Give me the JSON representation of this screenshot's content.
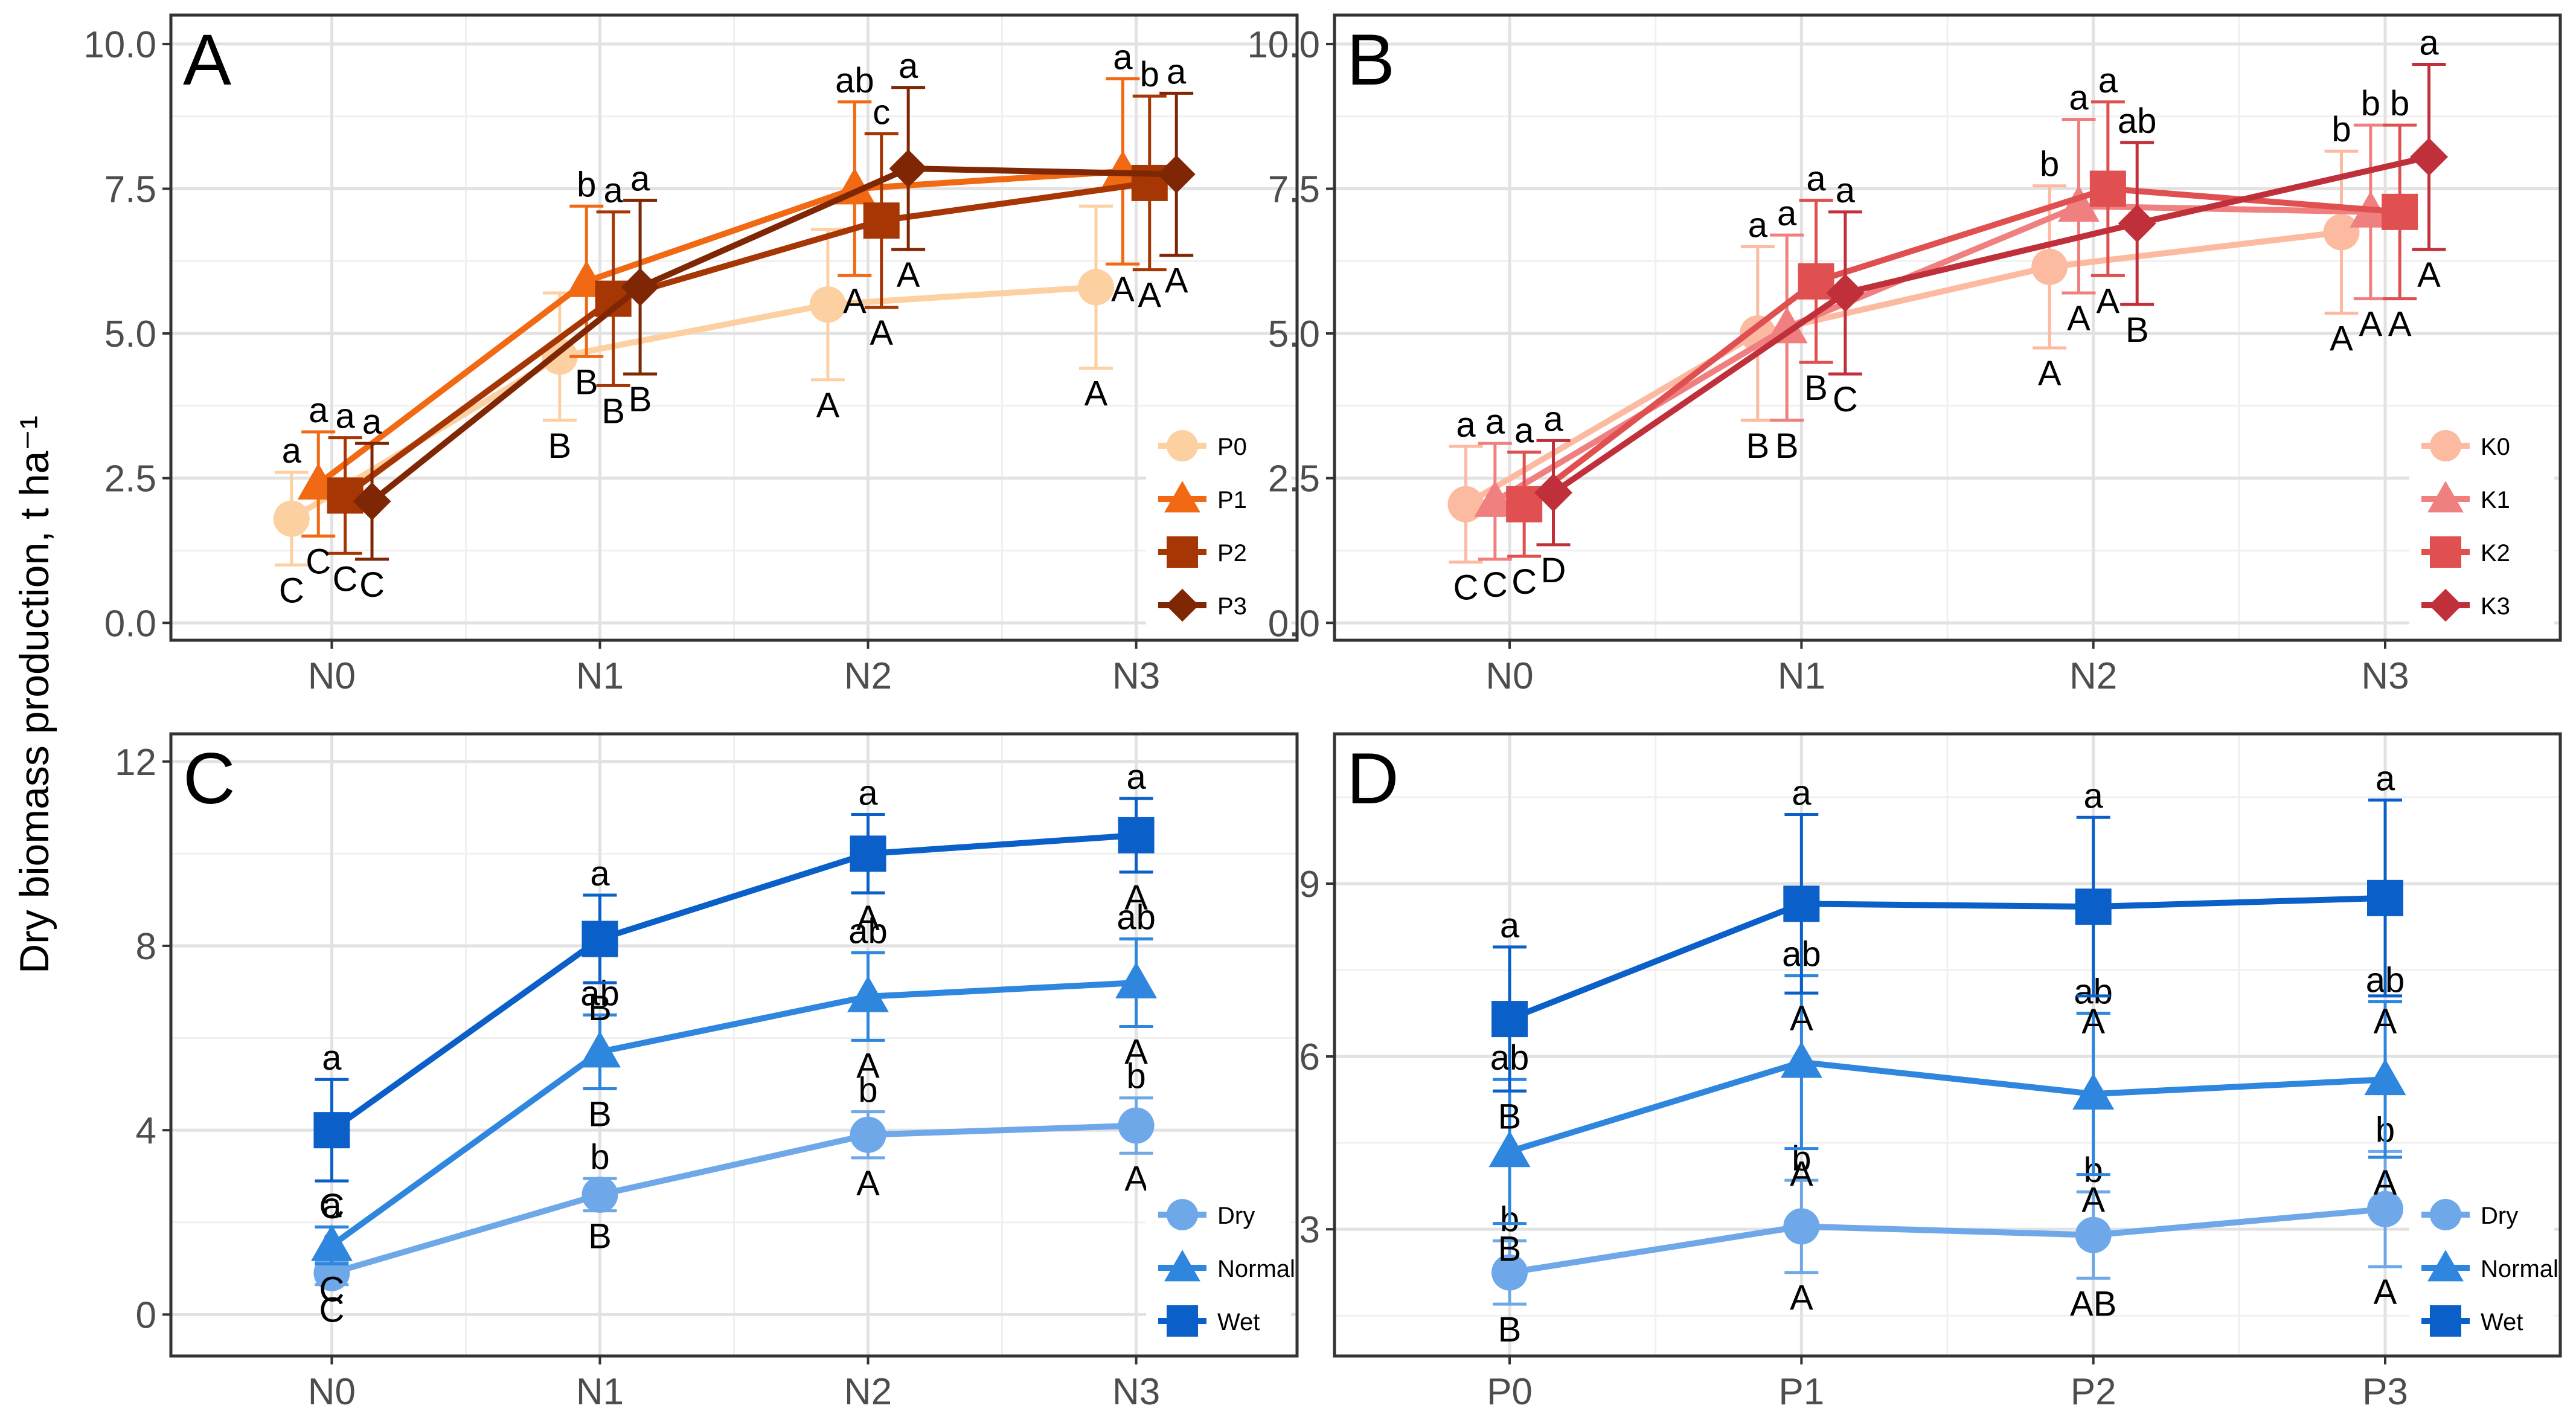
{
  "y_axis_title": "Dry biomass production, t ha⁻¹",
  "chart_data": [
    {
      "panel_label": "A",
      "type": "line",
      "categories": [
        "N0",
        "N1",
        "N2",
        "N3"
      ],
      "yticks": [
        "0.0",
        "2.5",
        "5.0",
        "7.5",
        "10.0"
      ],
      "ytick_values": [
        0,
        2.5,
        5,
        7.5,
        10
      ],
      "ylim": [
        -0.3,
        10.5
      ],
      "legend_position": "bottom-right",
      "series": [
        {
          "name": "P0",
          "shape": "circle",
          "color": "#FDD0A2",
          "values": [
            1.8,
            4.6,
            5.5,
            5.8
          ],
          "err": [
            0.8,
            1.1,
            1.3,
            1.4
          ],
          "upper_labels": [
            "a",
            "",
            "",
            ""
          ],
          "lower_labels": [
            "C",
            "B",
            "A",
            "A"
          ]
        },
        {
          "name": "P1",
          "shape": "triangle",
          "color": "#F16913",
          "values": [
            2.4,
            5.9,
            7.5,
            7.8
          ],
          "err": [
            0.9,
            1.3,
            1.5,
            1.6
          ],
          "upper_labels": [
            "a",
            "b",
            "ab",
            "a"
          ],
          "lower_labels": [
            "C",
            "B",
            "A",
            "A"
          ]
        },
        {
          "name": "P2",
          "shape": "square",
          "color": "#A63603",
          "values": [
            2.2,
            5.6,
            6.95,
            7.6
          ],
          "err": [
            1.0,
            1.5,
            1.5,
            1.5
          ],
          "upper_labels": [
            "a",
            "a",
            "c",
            "b"
          ],
          "lower_labels": [
            "C",
            "B",
            "A",
            "A"
          ]
        },
        {
          "name": "P3",
          "shape": "diamond",
          "color": "#7F2704",
          "values": [
            2.1,
            5.8,
            7.85,
            7.75
          ],
          "err": [
            1.0,
            1.5,
            1.4,
            1.4
          ],
          "upper_labels": [
            "a",
            "a",
            "a",
            "a"
          ],
          "lower_labels": [
            "C",
            "B",
            "A",
            "A"
          ]
        }
      ]
    },
    {
      "panel_label": "B",
      "type": "line",
      "categories": [
        "N0",
        "N1",
        "N2",
        "N3"
      ],
      "yticks": [
        "0.0",
        "2.5",
        "5.0",
        "7.5",
        "10.0"
      ],
      "ytick_values": [
        0,
        2.5,
        5,
        7.5,
        10
      ],
      "ylim": [
        -0.3,
        10.5
      ],
      "legend_position": "bottom-right",
      "series": [
        {
          "name": "K0",
          "shape": "circle",
          "color": "#FCBBA1",
          "values": [
            2.05,
            5.0,
            6.15,
            6.75
          ],
          "err": [
            1.0,
            1.5,
            1.4,
            1.4
          ],
          "upper_labels": [
            "a",
            "a",
            "b",
            "b"
          ],
          "lower_labels": [
            "C",
            "B",
            "A",
            "A"
          ]
        },
        {
          "name": "K1",
          "shape": "triangle",
          "color": "#F08080",
          "values": [
            2.1,
            5.1,
            7.2,
            7.1
          ],
          "err": [
            1.0,
            1.6,
            1.5,
            1.5
          ],
          "upper_labels": [
            "a",
            "a",
            "a",
            "b"
          ],
          "lower_labels": [
            "C",
            "B",
            "A",
            "A"
          ]
        },
        {
          "name": "K2",
          "shape": "square",
          "color": "#E05050",
          "values": [
            2.05,
            5.9,
            7.5,
            7.1
          ],
          "err": [
            0.9,
            1.4,
            1.5,
            1.5
          ],
          "upper_labels": [
            "a",
            "a",
            "a",
            "b"
          ],
          "lower_labels": [
            "C",
            "B",
            "A",
            "A"
          ]
        },
        {
          "name": "K3",
          "shape": "diamond",
          "color": "#C0303A",
          "values": [
            2.25,
            5.7,
            6.9,
            8.05
          ],
          "err": [
            0.9,
            1.4,
            1.4,
            1.6
          ],
          "upper_labels": [
            "a",
            "a",
            "ab",
            "a"
          ],
          "lower_labels": [
            "D",
            "C",
            "B",
            "A"
          ]
        }
      ]
    },
    {
      "panel_label": "C",
      "type": "line",
      "categories": [
        "N0",
        "N1",
        "N2",
        "N3"
      ],
      "yticks": [
        "0",
        "4",
        "8",
        "12"
      ],
      "ytick_values": [
        0,
        4,
        8,
        12
      ],
      "ylim": [
        -0.9,
        12.6
      ],
      "legend_position": "bottom-right",
      "series": [
        {
          "name": "Dry",
          "shape": "circle",
          "color": "#6FA8E8",
          "values": [
            0.9,
            2.6,
            3.9,
            4.1
          ],
          "err": [
            0.25,
            0.35,
            0.5,
            0.6
          ],
          "upper_labels": [
            "a",
            "b",
            "b",
            "b"
          ],
          "lower_labels": [
            "C",
            "B",
            "A",
            "A"
          ]
        },
        {
          "name": "Normal",
          "shape": "triangle",
          "color": "#2E86DE",
          "values": [
            1.5,
            5.7,
            6.9,
            7.2
          ],
          "err": [
            0.4,
            0.8,
            0.95,
            0.95
          ],
          "upper_labels": [
            "a",
            "ab",
            "ab",
            "ab"
          ],
          "lower_labels": [
            "C",
            "B",
            "A",
            "A"
          ]
        },
        {
          "name": "Wet",
          "shape": "square",
          "color": "#0A5FC8",
          "values": [
            4.0,
            8.15,
            10.0,
            10.4
          ],
          "err": [
            1.1,
            0.95,
            0.85,
            0.8
          ],
          "upper_labels": [
            "a",
            "a",
            "a",
            "a"
          ],
          "lower_labels": [
            "C",
            "B",
            "A",
            "A"
          ]
        }
      ]
    },
    {
      "panel_label": "D",
      "type": "line",
      "categories": [
        "P0",
        "P1",
        "P2",
        "P3"
      ],
      "yticks": [
        "3",
        "6",
        "9"
      ],
      "ytick_values": [
        3,
        6,
        9
      ],
      "ylim": [
        0.8,
        11.6
      ],
      "legend_position": "bottom-right",
      "series": [
        {
          "name": "Dry",
          "shape": "circle",
          "color": "#6FA8E8",
          "values": [
            2.25,
            3.05,
            2.9,
            3.35
          ],
          "err": [
            0.55,
            0.8,
            0.75,
            1.0
          ],
          "upper_labels": [
            "b",
            "b",
            "b",
            "b"
          ],
          "lower_labels": [
            "B",
            "A",
            "AB",
            "A"
          ]
        },
        {
          "name": "Normal",
          "shape": "triangle",
          "color": "#2E86DE",
          "values": [
            4.35,
            5.9,
            5.35,
            5.6
          ],
          "err": [
            1.25,
            1.5,
            1.4,
            1.35
          ],
          "upper_labels": [
            "ab",
            "ab",
            "ab",
            "ab"
          ],
          "lower_labels": [
            "B",
            "A",
            "A",
            "A"
          ]
        },
        {
          "name": "Wet",
          "shape": "square",
          "color": "#0A5FC8",
          "values": [
            6.65,
            8.65,
            8.6,
            8.75
          ],
          "err": [
            1.25,
            1.55,
            1.55,
            1.7
          ],
          "upper_labels": [
            "a",
            "a",
            "a",
            "a"
          ],
          "lower_labels": [
            "B",
            "A",
            "A",
            "A"
          ]
        }
      ]
    }
  ]
}
